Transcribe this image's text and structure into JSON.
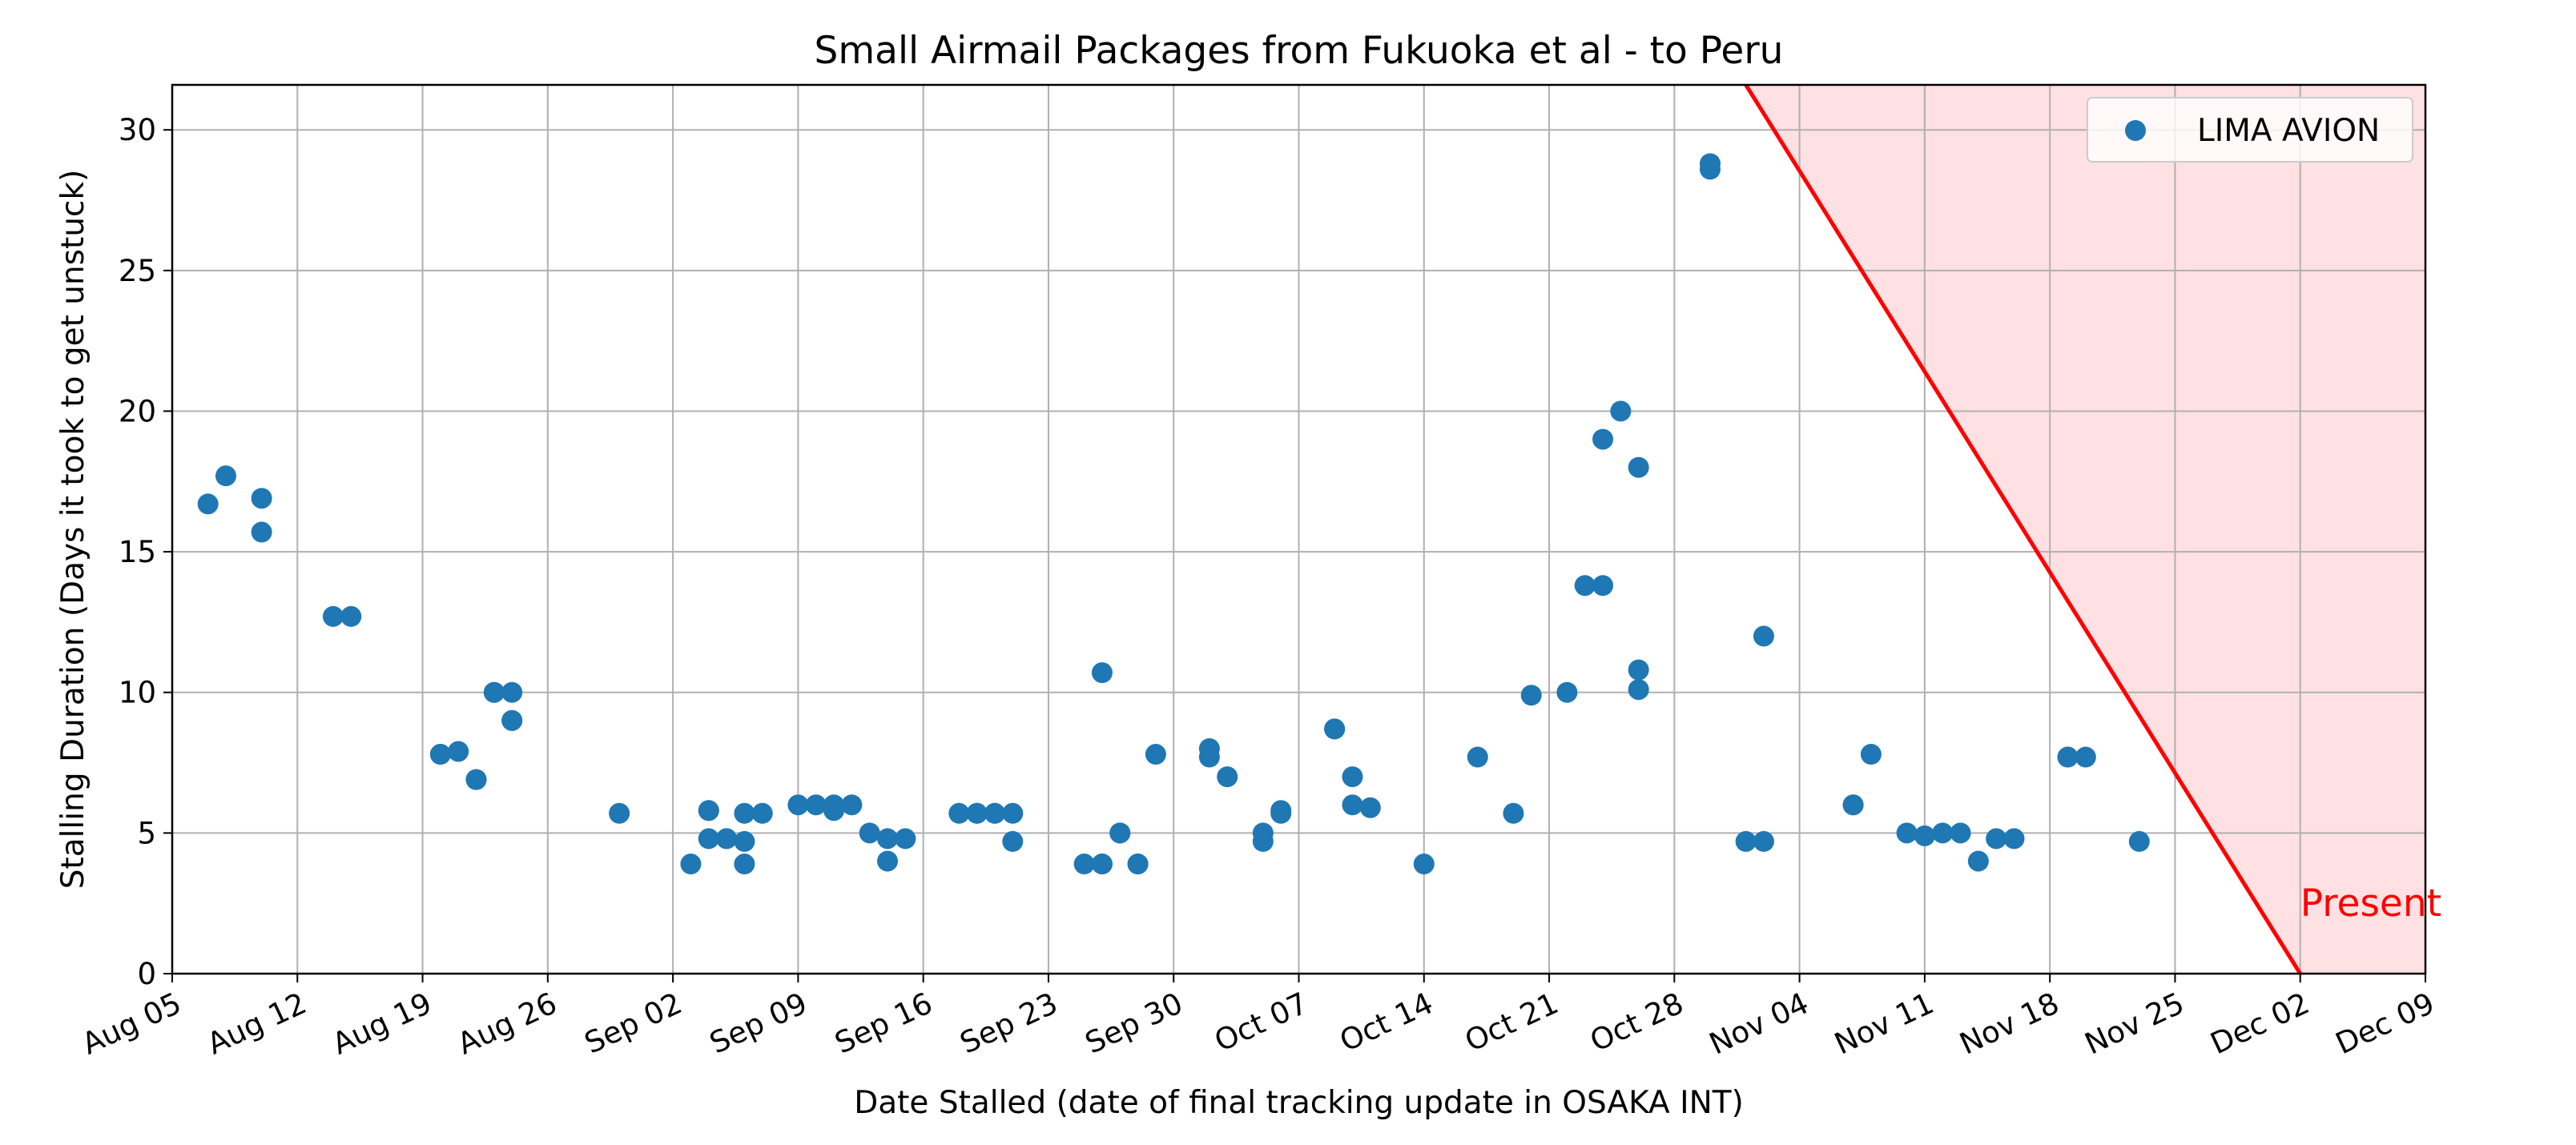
{
  "chart_data": {
    "type": "scatter",
    "title": "Small Airmail Packages from Fukuoka et al - to Peru",
    "xlabel": "Date Stalled (date of final tracking update in OSAKA INT)",
    "ylabel": "Stalling Duration (Days it took to get unstuck)",
    "x_axis": "date",
    "xlim": [
      "Aug 05",
      "Dec 09"
    ],
    "ylim": [
      0,
      31.6
    ],
    "x_ticks": [
      "Aug 05",
      "Aug 12",
      "Aug 19",
      "Aug 26",
      "Sep 02",
      "Sep 09",
      "Sep 16",
      "Sep 23",
      "Sep 30",
      "Oct 07",
      "Oct 14",
      "Oct 21",
      "Oct 28",
      "Nov 04",
      "Nov 11",
      "Nov 18",
      "Nov 25",
      "Dec 02",
      "Dec 09"
    ],
    "y_ticks": [
      0,
      5,
      10,
      15,
      20,
      25,
      30
    ],
    "grid": true,
    "legend": {
      "location": "top-right",
      "entries": [
        "LIMA AVION"
      ]
    },
    "series": [
      {
        "name": "LIMA AVION",
        "color": "#1f77b4",
        "points": [
          {
            "x": "Aug 07",
            "y": 16.7
          },
          {
            "x": "Aug 08",
            "y": 17.7
          },
          {
            "x": "Aug 10",
            "y": 16.9
          },
          {
            "x": "Aug 10",
            "y": 15.7
          },
          {
            "x": "Aug 14",
            "y": 12.7
          },
          {
            "x": "Aug 15",
            "y": 12.7
          },
          {
            "x": "Aug 20",
            "y": 7.8
          },
          {
            "x": "Aug 20",
            "y": 7.8
          },
          {
            "x": "Aug 21",
            "y": 7.9
          },
          {
            "x": "Aug 22",
            "y": 6.9
          },
          {
            "x": "Aug 22",
            "y": 6.9
          },
          {
            "x": "Aug 23",
            "y": 10.0
          },
          {
            "x": "Aug 23",
            "y": 10.0
          },
          {
            "x": "Aug 24",
            "y": 10.0
          },
          {
            "x": "Aug 24",
            "y": 9.0
          },
          {
            "x": "Aug 24",
            "y": 9.0
          },
          {
            "x": "Aug 30",
            "y": 5.7
          },
          {
            "x": "Sep 03",
            "y": 3.9
          },
          {
            "x": "Sep 04",
            "y": 5.8
          },
          {
            "x": "Sep 04",
            "y": 5.8
          },
          {
            "x": "Sep 04",
            "y": 4.8
          },
          {
            "x": "Sep 05",
            "y": 4.8
          },
          {
            "x": "Sep 05",
            "y": 4.8
          },
          {
            "x": "Sep 06",
            "y": 4.7
          },
          {
            "x": "Sep 06",
            "y": 3.9
          },
          {
            "x": "Sep 06",
            "y": 5.7
          },
          {
            "x": "Sep 07",
            "y": 5.7
          },
          {
            "x": "Sep 09",
            "y": 6.0
          },
          {
            "x": "Sep 10",
            "y": 6.0
          },
          {
            "x": "Sep 11",
            "y": 5.8
          },
          {
            "x": "Sep 11",
            "y": 6.0
          },
          {
            "x": "Sep 12",
            "y": 6.0
          },
          {
            "x": "Sep 13",
            "y": 5.0
          },
          {
            "x": "Sep 14",
            "y": 4.0
          },
          {
            "x": "Sep 14",
            "y": 4.8
          },
          {
            "x": "Sep 15",
            "y": 4.8
          },
          {
            "x": "Sep 18",
            "y": 5.7
          },
          {
            "x": "Sep 19",
            "y": 5.7
          },
          {
            "x": "Sep 19",
            "y": 5.7
          },
          {
            "x": "Sep 20",
            "y": 5.7
          },
          {
            "x": "Sep 20",
            "y": 5.7
          },
          {
            "x": "Sep 21",
            "y": 5.7
          },
          {
            "x": "Sep 21",
            "y": 4.7
          },
          {
            "x": "Sep 25",
            "y": 3.9
          },
          {
            "x": "Sep 26",
            "y": 3.9
          },
          {
            "x": "Sep 26",
            "y": 10.7
          },
          {
            "x": "Sep 26",
            "y": 3.9
          },
          {
            "x": "Sep 27",
            "y": 5.0
          },
          {
            "x": "Sep 27",
            "y": 5.0
          },
          {
            "x": "Sep 28",
            "y": 3.9
          },
          {
            "x": "Sep 28",
            "y": 3.9
          },
          {
            "x": "Sep 29",
            "y": 7.8
          },
          {
            "x": "Oct 02",
            "y": 7.7
          },
          {
            "x": "Oct 02",
            "y": 8.0
          },
          {
            "x": "Oct 03",
            "y": 7.0
          },
          {
            "x": "Oct 05",
            "y": 4.7
          },
          {
            "x": "Oct 05",
            "y": 5.0
          },
          {
            "x": "Oct 06",
            "y": 5.7
          },
          {
            "x": "Oct 06",
            "y": 5.8
          },
          {
            "x": "Oct 09",
            "y": 8.7
          },
          {
            "x": "Oct 09",
            "y": 8.7
          },
          {
            "x": "Oct 10",
            "y": 7.0
          },
          {
            "x": "Oct 10",
            "y": 6.0
          },
          {
            "x": "Oct 11",
            "y": 5.9
          },
          {
            "x": "Oct 14",
            "y": 3.9
          },
          {
            "x": "Oct 17",
            "y": 7.7
          },
          {
            "x": "Oct 19",
            "y": 5.7
          },
          {
            "x": "Oct 20",
            "y": 9.9
          },
          {
            "x": "Oct 22",
            "y": 10.0
          },
          {
            "x": "Oct 23",
            "y": 13.8
          },
          {
            "x": "Oct 24",
            "y": 13.8
          },
          {
            "x": "Oct 24",
            "y": 19.0
          },
          {
            "x": "Oct 25",
            "y": 20.0
          },
          {
            "x": "Oct 26",
            "y": 18.0
          },
          {
            "x": "Oct 26",
            "y": 10.1
          },
          {
            "x": "Oct 26",
            "y": 10.8
          },
          {
            "x": "Oct 30",
            "y": 28.6
          },
          {
            "x": "Oct 30",
            "y": 28.8
          },
          {
            "x": "Nov 01",
            "y": 4.7
          },
          {
            "x": "Nov 02",
            "y": 4.7
          },
          {
            "x": "Nov 02",
            "y": 12.0
          },
          {
            "x": "Nov 07",
            "y": 6.0
          },
          {
            "x": "Nov 07",
            "y": 6.0
          },
          {
            "x": "Nov 08",
            "y": 7.8
          },
          {
            "x": "Nov 10",
            "y": 5.0
          },
          {
            "x": "Nov 11",
            "y": 4.9
          },
          {
            "x": "Nov 12",
            "y": 5.0
          },
          {
            "x": "Nov 13",
            "y": 5.0
          },
          {
            "x": "Nov 14",
            "y": 4.0
          },
          {
            "x": "Nov 15",
            "y": 4.8
          },
          {
            "x": "Nov 16",
            "y": 4.8
          },
          {
            "x": "Nov 19",
            "y": 7.7
          },
          {
            "x": "Nov 19",
            "y": 7.7
          },
          {
            "x": "Nov 20",
            "y": 7.7
          },
          {
            "x": "Nov 23",
            "y": 4.7
          }
        ]
      }
    ],
    "annotations": [
      {
        "text": "Present",
        "color": "#ff0000",
        "line": {
          "from": {
            "x": "Nov 01",
            "y": 31.6
          },
          "to": {
            "x": "Dec 02",
            "y": 0
          }
        },
        "shade_color": "#ffe0e3",
        "label_at": {
          "x": "Dec 02",
          "y": 2.5
        }
      }
    ]
  }
}
